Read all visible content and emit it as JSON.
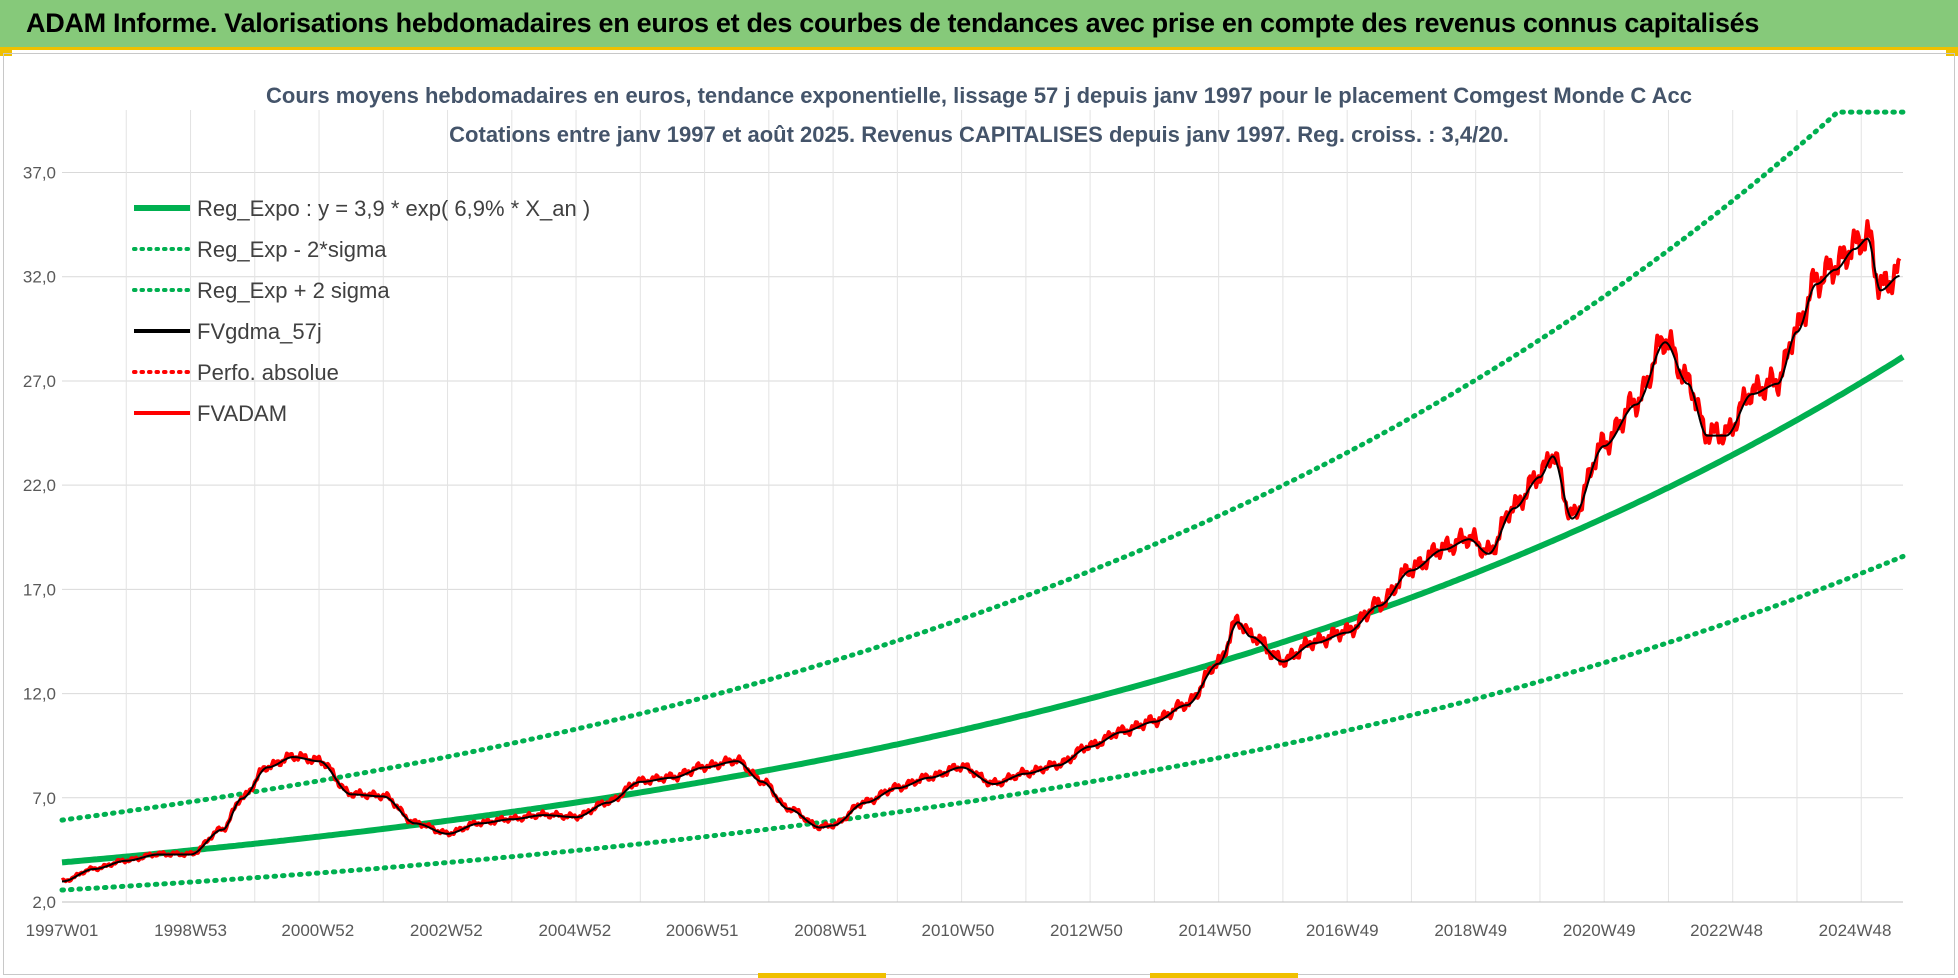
{
  "header": {
    "title": "ADAM Informe. Valorisations hebdomadaires en euros et des courbes de tendances avec prise en compte des revenus connus capitalisés"
  },
  "colors": {
    "trend": "#00b050",
    "gdma": "#000000",
    "adam": "#ff0000",
    "header_bg": "#86c97a",
    "accent": "#f0c000"
  },
  "chart_data": {
    "type": "line",
    "title": "Cours moyens hebdomadaires en euros, tendance exponentielle, lissage 57 j depuis janv 1997 pour le placement Comgest Monde C Acc",
    "subtitle": "Cotations entre janv 1997 et août 2025. Revenus CAPITALISES depuis janv 1997. Reg. croiss. : 3,4/20.",
    "x_range": [
      "1997W01",
      "2025W33"
    ],
    "x_ticks": [
      "1997W01",
      "1998W53",
      "2000W52",
      "2002W52",
      "2004W52",
      "2006W51",
      "2008W51",
      "2010W50",
      "2012W50",
      "2014W50",
      "2016W49",
      "2018W49",
      "2020W49",
      "2022W48",
      "2024W48"
    ],
    "y_ticks": [
      "2,0",
      "7,0",
      "12,0",
      "17,0",
      "22,0",
      "27,0",
      "32,0",
      "37,0"
    ],
    "ylim": [
      2,
      40
    ],
    "grid": true,
    "legend_position": "top-left",
    "legend": [
      {
        "label": "Reg_Expo : y = 3,9 * exp( 6,9% *  X_an )",
        "color": "#00b050",
        "style": "solid"
      },
      {
        "label": "Reg_Exp - 2*sigma",
        "color": "#00b050",
        "style": "dotted"
      },
      {
        "label": "Reg_Exp + 2 sigma",
        "color": "#00b050",
        "style": "dotted"
      },
      {
        "label": "FVgdma_57j",
        "color": "#000000",
        "style": "solid"
      },
      {
        "label": "Perfo. absolue",
        "color": "#ff0000",
        "style": "dotted"
      },
      {
        "label": "FVADAM",
        "color": "#ff0000",
        "style": "solid"
      }
    ],
    "regression": {
      "a": 3.9,
      "rate": 0.069
    },
    "fvadam": {
      "x": [
        1997.0,
        1997.5,
        1998.0,
        1998.5,
        1999.0,
        1999.5,
        1999.8,
        2000.2,
        2000.6,
        2001.0,
        2001.5,
        2002.0,
        2002.5,
        2003.0,
        2003.5,
        2004.0,
        2004.5,
        2005.0,
        2005.5,
        2006.0,
        2006.5,
        2007.0,
        2007.5,
        2007.9,
        2008.3,
        2008.8,
        2009.0,
        2009.5,
        2010.0,
        2010.5,
        2011.0,
        2011.5,
        2012.0,
        2012.5,
        2013.0,
        2013.5,
        2014.0,
        2014.5,
        2015.0,
        2015.3,
        2015.5,
        2016.0,
        2016.5,
        2017.0,
        2017.5,
        2018.0,
        2018.5,
        2018.9,
        2019.2,
        2019.6,
        2020.0,
        2020.2,
        2020.5,
        2021.0,
        2021.5,
        2021.95,
        2022.3,
        2022.6,
        2022.9,
        2023.3,
        2023.7,
        2024.0,
        2024.3,
        2024.6,
        2024.9,
        2025.1,
        2025.3,
        2025.6
      ],
      "y": [
        3.0,
        3.6,
        4.0,
        4.3,
        4.3,
        5.5,
        7.0,
        8.5,
        9.0,
        8.8,
        7.2,
        7.1,
        5.8,
        5.3,
        5.8,
        6.0,
        6.2,
        6.1,
        6.8,
        7.8,
        8.0,
        8.5,
        8.8,
        7.8,
        6.5,
        5.6,
        5.7,
        6.8,
        7.5,
        8.0,
        8.5,
        7.7,
        8.2,
        8.6,
        9.5,
        10.2,
        10.7,
        11.5,
        13.5,
        15.5,
        14.8,
        13.6,
        14.5,
        15.0,
        16.3,
        18.0,
        19.0,
        19.5,
        18.8,
        21.0,
        22.5,
        23.5,
        20.5,
        24.0,
        26.0,
        29.0,
        27.0,
        24.5,
        24.5,
        26.5,
        27.0,
        29.5,
        31.8,
        32.5,
        33.5,
        34.0,
        31.5,
        32.2
      ]
    }
  }
}
